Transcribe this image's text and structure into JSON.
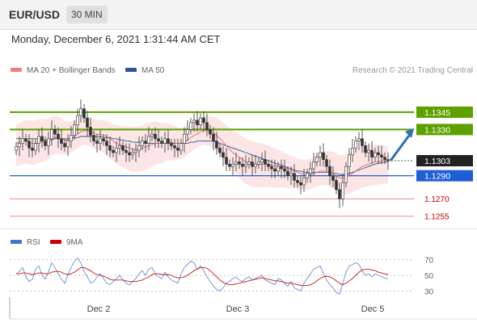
{
  "header": {
    "symbol": "EUR/USD",
    "timeframe": "30 MIN"
  },
  "datetime": "Monday, December 6, 2021 1:31:44 AM CET",
  "legend": {
    "items": [
      {
        "label": "MA 20 + Bollinger Bands",
        "color": "#f08080"
      },
      {
        "label": "MA 50",
        "color": "#2f5597"
      }
    ],
    "credit": "Research © 2021 Trading Central"
  },
  "rsi_legend": {
    "items": [
      {
        "label": "RSI",
        "color": "#4472c4"
      },
      {
        "label": "9MA",
        "color": "#d00000"
      }
    ]
  },
  "chart_data": [
    {
      "type": "candlestick",
      "title": "EUR/USD 30 MIN",
      "x_ticks": [
        "Dec 2",
        "Dec 3",
        "Dec 5"
      ],
      "levels": [
        {
          "value": "1.1345",
          "price": 1.1345,
          "kind": "resistance",
          "color": "#5ea000"
        },
        {
          "value": "1.1330",
          "price": 1.133,
          "kind": "resistance",
          "color": "#5ea000"
        },
        {
          "value": "1.1303",
          "price": 1.1303,
          "kind": "last",
          "color": "#222222"
        },
        {
          "value": "1.1290",
          "price": 1.129,
          "kind": "pivot",
          "color": "#1f5fd6"
        },
        {
          "value": "1.1270",
          "price": 1.127,
          "kind": "support",
          "color": "#cc0000"
        },
        {
          "value": "1.1255",
          "price": 1.1255,
          "kind": "support",
          "color": "#cc0000"
        }
      ],
      "ylim": [
        1.1245,
        1.1375
      ],
      "close_series": [
        1.1315,
        1.1318,
        1.1322,
        1.132,
        1.1314,
        1.1312,
        1.1318,
        1.1324,
        1.132,
        1.1316,
        1.1322,
        1.133,
        1.1326,
        1.1322,
        1.1318,
        1.1315,
        1.132,
        1.1325,
        1.1334,
        1.1342,
        1.1348,
        1.134,
        1.1332,
        1.1325,
        1.132,
        1.1318,
        1.1322,
        1.132,
        1.1316,
        1.1312,
        1.131,
        1.1314,
        1.1316,
        1.1312,
        1.131,
        1.1308,
        1.131,
        1.1312,
        1.1316,
        1.132,
        1.1318,
        1.1324,
        1.1326,
        1.1322,
        1.132,
        1.1318,
        1.1322,
        1.1318,
        1.1316,
        1.1314,
        1.1312,
        1.1318,
        1.1326,
        1.133,
        1.1336,
        1.1338,
        1.1334,
        1.134,
        1.1336,
        1.133,
        1.1326,
        1.132,
        1.1314,
        1.131,
        1.1306,
        1.13,
        1.1298,
        1.13,
        1.1302,
        1.13,
        1.1298,
        1.13,
        1.1302,
        1.1298,
        1.13,
        1.1302,
        1.1304,
        1.13,
        1.1298,
        1.1296,
        1.1294,
        1.1298,
        1.1296,
        1.1294,
        1.129,
        1.1292,
        1.1286,
        1.1284,
        1.1282,
        1.1288,
        1.1292,
        1.1296,
        1.1302,
        1.1306,
        1.131,
        1.1304,
        1.1298,
        1.129,
        1.1286,
        1.1278,
        1.127,
        1.1284,
        1.1298,
        1.1308,
        1.1314,
        1.132,
        1.1322,
        1.1316,
        1.131,
        1.1312,
        1.1306,
        1.131,
        1.1308,
        1.1306,
        1.1304,
        1.1303
      ],
      "ma20": [
        1.1318,
        1.1319,
        1.132,
        1.132,
        1.1319,
        1.1318,
        1.1318,
        1.1319,
        1.1319,
        1.1319,
        1.132,
        1.1322,
        1.1323,
        1.1323,
        1.1322,
        1.1321,
        1.1321,
        1.1322,
        1.1324,
        1.1326,
        1.1328,
        1.1329,
        1.1329,
        1.1328,
        1.1327,
        1.1326,
        1.1326,
        1.1325,
        1.1324,
        1.1322,
        1.132,
        1.1318,
        1.1317,
        1.1316,
        1.1315,
        1.1314,
        1.1313,
        1.1313,
        1.1313,
        1.1314,
        1.1315,
        1.1316,
        1.1317,
        1.1318,
        1.1318,
        1.1318,
        1.1319,
        1.1319,
        1.1319,
        1.1318,
        1.1318,
        1.1318,
        1.1319,
        1.1321,
        1.1323,
        1.1325,
        1.1326,
        1.1328,
        1.1329,
        1.1329,
        1.1328,
        1.1327,
        1.1325,
        1.1322,
        1.1319,
        1.1316,
        1.1313,
        1.131,
        1.1308,
        1.1306,
        1.1304,
        1.1302,
        1.1301,
        1.13,
        1.13,
        1.13,
        1.13,
        1.13,
        1.13,
        1.1299,
        1.1299,
        1.1298,
        1.1298,
        1.1297,
        1.1296,
        1.1295,
        1.1294,
        1.1293,
        1.1292,
        1.1291,
        1.1291,
        1.1291,
        1.1292,
        1.1293,
        1.1294,
        1.1294,
        1.1294,
        1.1293,
        1.1292,
        1.129,
        1.1288,
        1.1288,
        1.1289,
        1.129,
        1.1292,
        1.1294,
        1.1296,
        1.1298,
        1.1299,
        1.13,
        1.1301,
        1.1302,
        1.1302,
        1.1303,
        1.1303,
        1.1303
      ],
      "ma50": [
        1.1322,
        1.1322,
        1.1322,
        1.1322,
        1.1322,
        1.1322,
        1.1322,
        1.1322,
        1.1321,
        1.1321,
        1.1321,
        1.1321,
        1.1322,
        1.1322,
        1.1322,
        1.1322,
        1.1322,
        1.1322,
        1.1323,
        1.1323,
        1.1324,
        1.1324,
        1.1324,
        1.1324,
        1.1324,
        1.1324,
        1.1324,
        1.1323,
        1.1323,
        1.1323,
        1.1322,
        1.1322,
        1.1321,
        1.1321,
        1.132,
        1.132,
        1.1319,
        1.1319,
        1.1319,
        1.1319,
        1.1318,
        1.1318,
        1.1318,
        1.1318,
        1.1318,
        1.1318,
        1.1318,
        1.1318,
        1.1318,
        1.1318,
        1.1318,
        1.1318,
        1.1318,
        1.1318,
        1.1319,
        1.1319,
        1.132,
        1.132,
        1.132,
        1.132,
        1.132,
        1.132,
        1.1319,
        1.1318,
        1.1317,
        1.1316,
        1.1315,
        1.1314,
        1.1313,
        1.1312,
        1.1311,
        1.131,
        1.1309,
        1.1308,
        1.1307,
        1.1306,
        1.1305,
        1.1304,
        1.1303,
        1.1302,
        1.1301,
        1.13,
        1.1299,
        1.1298,
        1.1297,
        1.1296,
        1.1295,
        1.1294,
        1.1294,
        1.1293,
        1.1293,
        1.1293,
        1.1293,
        1.1293,
        1.1293,
        1.1293,
        1.1293,
        1.1293,
        1.1292,
        1.1292,
        1.1291,
        1.1291,
        1.1291,
        1.1292,
        1.1293,
        1.1294,
        1.1295,
        1.1296,
        1.1297,
        1.1298,
        1.1299,
        1.13,
        1.1301,
        1.1301,
        1.1302,
        1.1302
      ]
    },
    {
      "type": "line",
      "title": "RSI",
      "y_ticks": [
        "70",
        "50",
        "30"
      ],
      "ylim": [
        20,
        80
      ],
      "series": [
        {
          "name": "RSI",
          "values": [
            52,
            55,
            60,
            48,
            42,
            45,
            58,
            62,
            50,
            45,
            55,
            66,
            60,
            52,
            45,
            40,
            50,
            60,
            68,
            72,
            66,
            55,
            48,
            40,
            42,
            48,
            52,
            46,
            40,
            38,
            42,
            46,
            50,
            44,
            40,
            38,
            42,
            46,
            52,
            56,
            50,
            58,
            60,
            52,
            48,
            46,
            54,
            48,
            44,
            42,
            40,
            52,
            60,
            64,
            68,
            66,
            58,
            62,
            56,
            48,
            42,
            36,
            32,
            30,
            34,
            40,
            42,
            46,
            48,
            44,
            42,
            46,
            48,
            44,
            46,
            48,
            50,
            44,
            42,
            40,
            38,
            46,
            44,
            40,
            36,
            42,
            34,
            32,
            30,
            40,
            46,
            52,
            58,
            60,
            62,
            52,
            44,
            38,
            34,
            28,
            26,
            40,
            54,
            62,
            64,
            66,
            64,
            56,
            50,
            52,
            48,
            52,
            50,
            48,
            46,
            46
          ]
        },
        {
          "name": "9MA",
          "values": [
            52,
            52,
            53,
            53,
            52,
            51,
            52,
            53,
            53,
            52,
            52,
            54,
            55,
            55,
            54,
            52,
            51,
            52,
            54,
            57,
            60,
            60,
            58,
            56,
            53,
            51,
            50,
            49,
            47,
            45,
            44,
            44,
            44,
            44,
            43,
            42,
            42,
            42,
            43,
            44,
            46,
            48,
            51,
            52,
            52,
            51,
            51,
            51,
            50,
            48,
            47,
            47,
            48,
            50,
            53,
            56,
            58,
            60,
            60,
            59,
            56,
            52,
            48,
            44,
            41,
            39,
            38,
            38,
            39,
            40,
            41,
            42,
            43,
            44,
            45,
            46,
            47,
            46,
            45,
            44,
            43,
            43,
            42,
            41,
            40,
            40,
            39,
            38,
            37,
            37,
            37,
            38,
            40,
            43,
            46,
            48,
            49,
            48,
            46,
            43,
            40,
            38,
            40,
            43,
            46,
            50,
            54,
            57,
            58,
            58,
            57,
            56,
            54,
            53,
            52,
            51
          ]
        }
      ]
    }
  ]
}
